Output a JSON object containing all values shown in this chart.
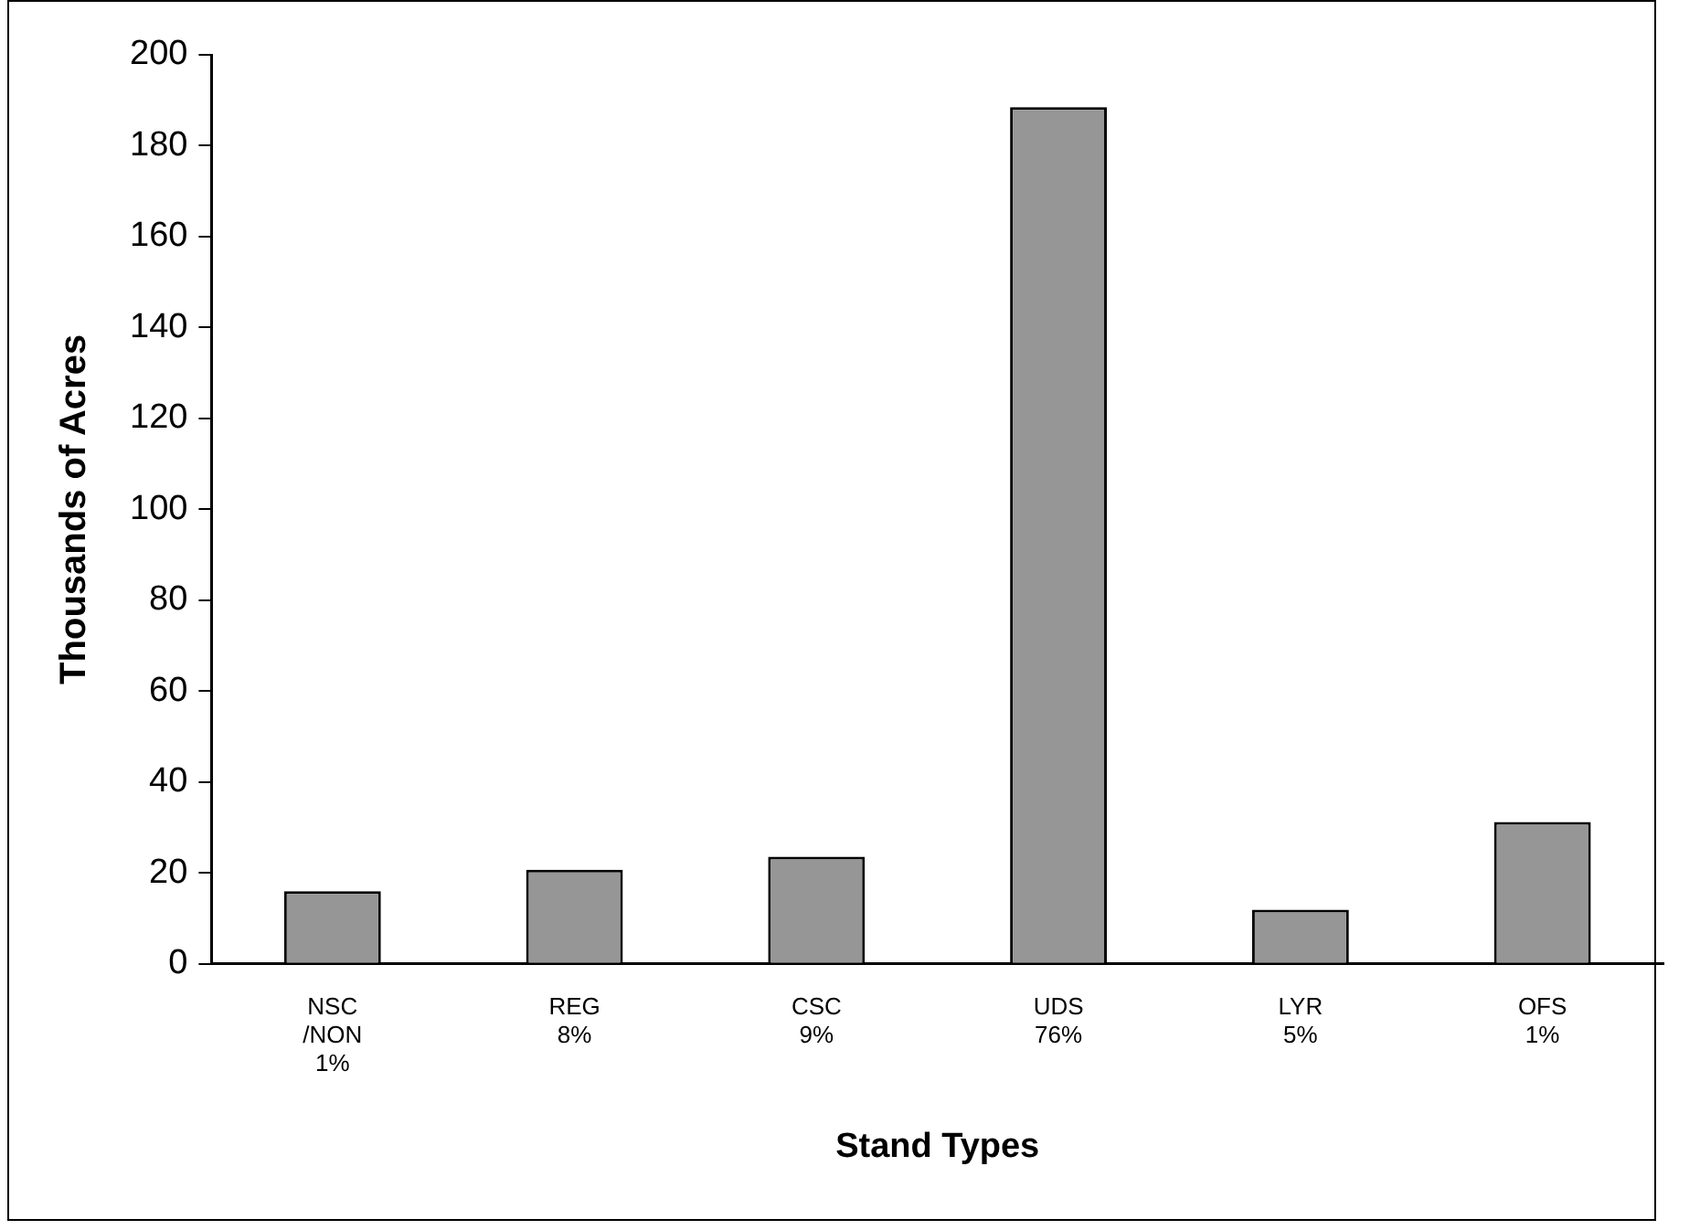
{
  "chart_data": {
    "type": "bar",
    "xlabel": "Stand Types",
    "ylabel": "Thousands of Acres",
    "categories": [
      "NSC\n/NON\n1%",
      "REG\n8%",
      "CSC\n9%",
      "UDS\n76%",
      "LYR\n5%",
      "OFS\n1%"
    ],
    "values": [
      16,
      20.7,
      23.6,
      188.5,
      11.9,
      31.2
    ],
    "color": "#969696",
    "ylim": [
      0,
      200
    ],
    "yticks": [
      0,
      20,
      40,
      60,
      80,
      100,
      120,
      140,
      160,
      180,
      200
    ],
    "grid": false,
    "legend": false
  }
}
